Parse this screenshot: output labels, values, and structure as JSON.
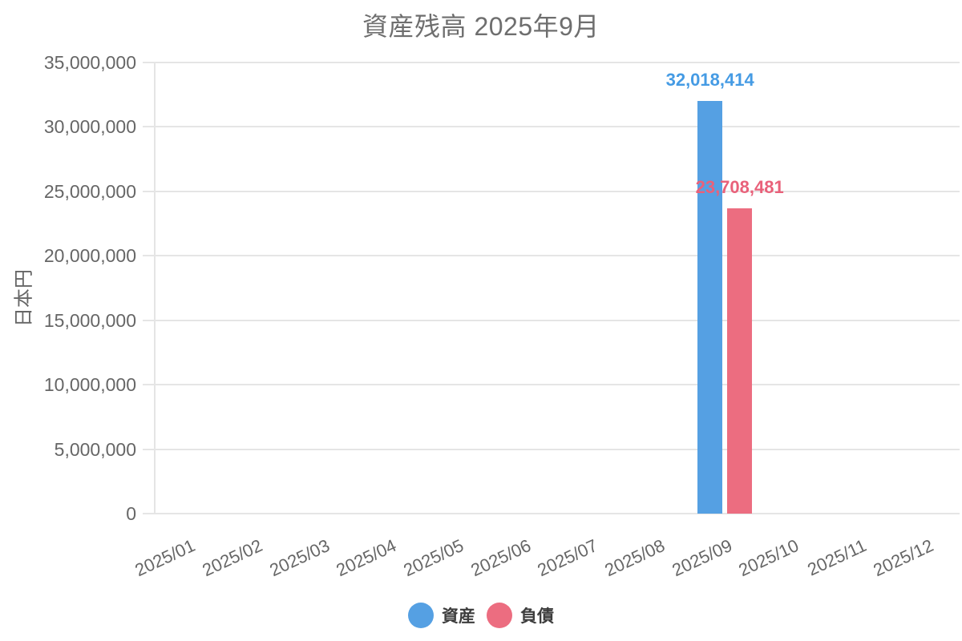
{
  "title": "資産残高 2025年9月",
  "chart_data": {
    "type": "bar",
    "title": "資産残高 2025年9月",
    "xlabel": "",
    "ylabel": "日本円",
    "ylim": [
      0,
      35000000
    ],
    "ytick_step": 5000000,
    "ytick_labels": [
      "0",
      "5,000,000",
      "10,000,000",
      "15,000,000",
      "20,000,000",
      "25,000,000",
      "30,000,000",
      "35,000,000"
    ],
    "grid": true,
    "legend_position": "bottom",
    "categories": [
      "2025/01",
      "2025/02",
      "2025/03",
      "2025/04",
      "2025/05",
      "2025/06",
      "2025/07",
      "2025/08",
      "2025/09",
      "2025/10",
      "2025/11",
      "2025/12"
    ],
    "series": [
      {
        "key": "assets",
        "name": "資産",
        "color": "#55a0e3",
        "label_color": "#459be4",
        "values": [
          null,
          null,
          null,
          null,
          null,
          null,
          null,
          null,
          32018414,
          null,
          null,
          null
        ],
        "data_label": "32,018,414"
      },
      {
        "key": "liabilities",
        "name": "負債",
        "color": "#ec6d80",
        "label_color": "#e9617a",
        "values": [
          null,
          null,
          null,
          null,
          null,
          null,
          null,
          null,
          23708481,
          null,
          null,
          null
        ],
        "data_label": "23,708,481"
      }
    ]
  },
  "colors": {
    "grid": "#e5e5e5",
    "tick_text": "#666666",
    "title_text": "#6e6e6e",
    "legend_text": "#3d3d3d",
    "background": "#ffffff"
  }
}
